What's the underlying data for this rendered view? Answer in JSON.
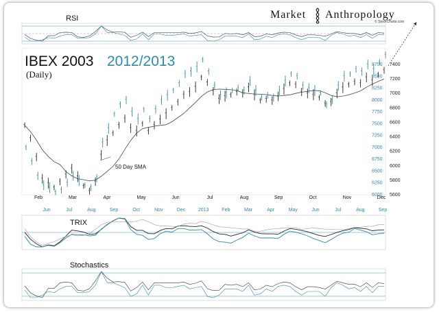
{
  "chart_data": {
    "type": "line",
    "title": "IBEX 2003",
    "title_comparison": "2012/2013",
    "subtitle": "(Daily)",
    "brand": "Market Anthropology",
    "brand_first": "Market",
    "brand_second": "Anthropology",
    "brand_sub": "© StockCharts.com",
    "annotation": "50 Day SMA",
    "colors": {
      "series_2003": "#222222",
      "series_2013": "#2e8aa8",
      "sma": "#444444",
      "guide": "#7fb8cc"
    },
    "panels": {
      "rsi_label": "RSI",
      "trix_label": "TRIX",
      "stoch_label": "Stochastics"
    },
    "x_axis_2003": [
      "Feb",
      "Mar",
      "Apr",
      "May",
      "Jun",
      "Jul",
      "Aug",
      "Sep",
      "Oct",
      "Nov",
      "Dec"
    ],
    "x_axis_2012_2013": [
      "Jun",
      "Jul",
      "Aug",
      "Sep",
      "Oct",
      "Nov",
      "Dec",
      "2013",
      "Feb",
      "Mar",
      "Apr",
      "May",
      "Jun",
      "Jul",
      "Aug",
      "Sep"
    ],
    "y_axis_2012_2013": [
      "6000",
      "6250",
      "6500",
      "6750",
      "7000",
      "7250",
      "7500",
      "7750",
      "8000",
      "8250",
      "8500",
      "8750"
    ],
    "y_axis_2003": [
      "5600",
      "5800",
      "6000",
      "6200",
      "6400",
      "6600",
      "6800",
      "7000",
      "7200",
      "7400"
    ],
    "series": [
      {
        "name": "IBEX 2003",
        "x": [
          0,
          4,
          8,
          12,
          16,
          20,
          24,
          28,
          32,
          36,
          40,
          44,
          48,
          52,
          56,
          60,
          64,
          68,
          72,
          76,
          80,
          84,
          88,
          92,
          96,
          100,
          104,
          108,
          112,
          116,
          120,
          124,
          128,
          132,
          136,
          140,
          144,
          148,
          152,
          156,
          160,
          164,
          168,
          172,
          176,
          180,
          184,
          188,
          192,
          196,
          200,
          204,
          208,
          212,
          216,
          220,
          224,
          228,
          232,
          236,
          240,
          244
        ],
        "values": [
          6560,
          6380,
          6120,
          5820,
          5760,
          5700,
          5780,
          5880,
          5960,
          5850,
          5720,
          5650,
          5780,
          6150,
          6350,
          6450,
          6560,
          6650,
          6520,
          6480,
          6580,
          6480,
          6560,
          6640,
          6720,
          6800,
          6880,
          6980,
          7020,
          7090,
          7220,
          7150,
          7030,
          6920,
          6960,
          6980,
          7020,
          7000,
          7080,
          6980,
          6900,
          6920,
          6900,
          6960,
          7060,
          7140,
          7120,
          7020,
          7000,
          6980,
          6940,
          6860,
          6880,
          7000,
          7080,
          7120,
          7160,
          7140,
          7220,
          7180,
          7260,
          7320
        ]
      },
      {
        "name": "IBEX 2012/2013",
        "x": [
          0,
          4,
          8,
          12,
          16,
          20,
          24,
          28,
          32,
          36,
          40,
          44,
          48,
          52,
          56,
          60,
          64,
          68,
          72,
          76,
          80,
          84,
          88,
          92,
          96,
          100,
          104,
          108,
          112,
          116,
          120,
          124,
          128,
          132,
          136,
          140,
          144,
          148,
          152,
          156,
          160,
          164,
          168,
          172,
          176,
          180,
          184,
          188,
          192,
          196,
          200,
          204,
          208,
          212,
          216,
          220,
          224,
          228,
          232,
          236,
          240,
          244
        ],
        "values": [
          7000,
          6700,
          6400,
          6200,
          6150,
          6050,
          6100,
          6250,
          6400,
          6300,
          6200,
          6150,
          6350,
          7100,
          7400,
          7700,
          7900,
          8000,
          7750,
          7600,
          7800,
          7600,
          7800,
          8000,
          8100,
          8200,
          8350,
          8550,
          8600,
          8700,
          8850,
          8600,
          8300,
          8100,
          8150,
          8200,
          8250,
          8200,
          8400,
          8200,
          8050,
          8100,
          8050,
          8200,
          8400,
          8550,
          8500,
          8300,
          8250,
          8200,
          8150,
          7900,
          8000,
          8300,
          8500,
          8550,
          8650,
          8600,
          8750,
          8650,
          8800,
          8950
        ]
      }
    ]
  }
}
